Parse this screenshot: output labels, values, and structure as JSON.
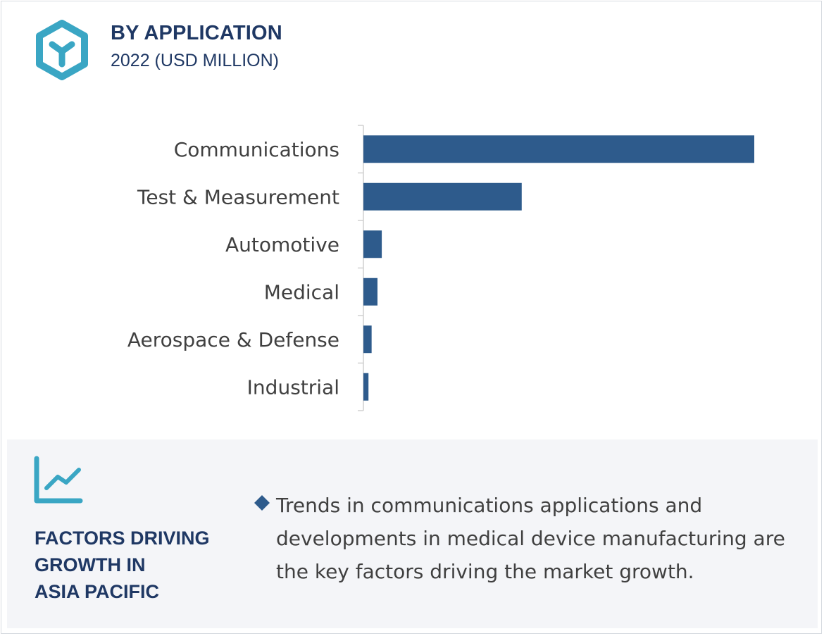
{
  "header": {
    "icon": "hexagon-y-icon",
    "title": "BY APPLICATION",
    "subtitle": "2022 (USD MILLION)"
  },
  "colors": {
    "bar": "#2e5b8c",
    "title": "#1f3864",
    "accent": "#3aa6c4",
    "panel_bg": "#f4f5f8",
    "text": "#404040"
  },
  "chart_data": {
    "type": "bar",
    "orientation": "horizontal",
    "categories": [
      "Communications",
      "Test & Measurement",
      "Automotive",
      "Medical",
      "Aerospace & Defense",
      "Industrial"
    ],
    "values": [
      100,
      40.5,
      4.7,
      3.6,
      2.1,
      1.3
    ],
    "xlim": [
      0,
      100
    ],
    "value_axis_labels": false,
    "grid": false,
    "legend": "none"
  },
  "factors": {
    "icon": "line-chart-icon",
    "heading_lines": [
      "FACTORS DRIVING",
      "GROWTH IN",
      "ASIA PACIFIC"
    ],
    "bullet_icon": "diamond-bullet-icon",
    "bullet_text": "Trends in communications applications and developments in medical device manufacturing are the key factors driving the market growth."
  }
}
